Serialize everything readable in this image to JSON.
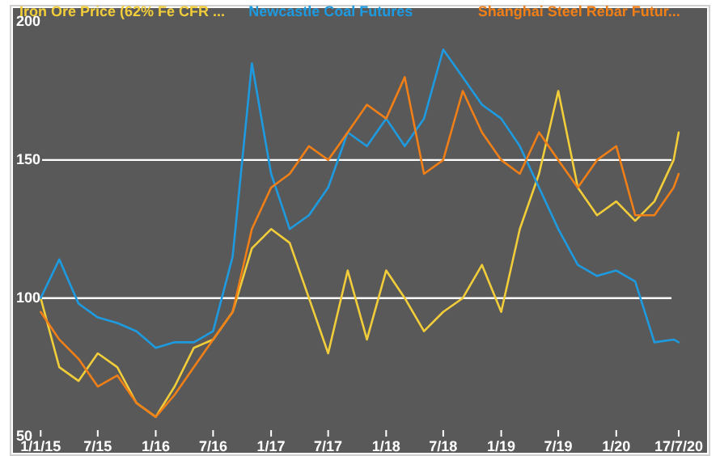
{
  "chart_data": {
    "type": "line",
    "x": [
      "2015-01",
      "2015-03",
      "2015-05",
      "2015-07",
      "2015-09",
      "2015-11",
      "2016-01",
      "2016-03",
      "2016-05",
      "2016-07",
      "2016-09",
      "2016-11",
      "2017-01",
      "2017-03",
      "2017-05",
      "2017-07",
      "2017-09",
      "2017-11",
      "2018-01",
      "2018-03",
      "2018-05",
      "2018-07",
      "2018-09",
      "2018-11",
      "2019-01",
      "2019-03",
      "2019-05",
      "2019-07",
      "2019-09",
      "2019-11",
      "2020-01",
      "2020-03",
      "2020-05",
      "2020-07",
      "2020-07-17"
    ],
    "series": [
      {
        "name": "Iron Ore Price (62% Fe CFR ...",
        "color": "#f2cd3a",
        "values": [
          100,
          75,
          70,
          80,
          75,
          62,
          57,
          68,
          82,
          85,
          95,
          118,
          125,
          120,
          100,
          80,
          110,
          85,
          110,
          100,
          88,
          95,
          100,
          112,
          95,
          125,
          145,
          175,
          140,
          130,
          135,
          128,
          135,
          150,
          160
        ]
      },
      {
        "name": "Newcastle Coal Futures",
        "color": "#1e9be0",
        "values": [
          100,
          114,
          98,
          93,
          91,
          88,
          82,
          84,
          84,
          88,
          115,
          185,
          145,
          125,
          130,
          140,
          160,
          155,
          165,
          155,
          165,
          190,
          180,
          170,
          165,
          155,
          140,
          125,
          112,
          108,
          110,
          106,
          84,
          85,
          84
        ]
      },
      {
        "name": "Shanghai Steel Rebar Futur...",
        "color": "#f07f17",
        "values": [
          95,
          85,
          78,
          68,
          72,
          62,
          57,
          65,
          75,
          85,
          95,
          125,
          140,
          145,
          155,
          150,
          160,
          170,
          165,
          180,
          145,
          150,
          175,
          160,
          150,
          145,
          160,
          150,
          140,
          150,
          155,
          130,
          130,
          140,
          145
        ]
      }
    ],
    "xlim": [
      "2014-10-05",
      "2020-10-15"
    ],
    "xticks": [
      {
        "value": "2015-01-01",
        "label": "1/1/15"
      },
      {
        "value": "2015-07-01",
        "label": "7/15"
      },
      {
        "value": "2016-01-01",
        "label": "1/16"
      },
      {
        "value": "2016-07-01",
        "label": "7/16"
      },
      {
        "value": "2017-01-01",
        "label": "1/17"
      },
      {
        "value": "2017-07-01",
        "label": "7/17"
      },
      {
        "value": "2018-01-01",
        "label": "1/18"
      },
      {
        "value": "2018-07-01",
        "label": "7/18"
      },
      {
        "value": "2019-01-01",
        "label": "1/19"
      },
      {
        "value": "2019-07-01",
        "label": "7/19"
      },
      {
        "value": "2020-01-01",
        "label": "1/20"
      },
      {
        "value": "2020-07-17",
        "label": "17/7/20"
      }
    ],
    "ylim": [
      44,
      205
    ],
    "yticks": [
      50,
      100,
      150,
      200
    ],
    "ref_lines": [
      {
        "axis": "y",
        "value": 100,
        "color": "#ffffff"
      },
      {
        "axis": "y",
        "value": 150,
        "color": "#ffffff"
      }
    ],
    "legend": "top",
    "line_style": "solid",
    "marker": "none"
  }
}
